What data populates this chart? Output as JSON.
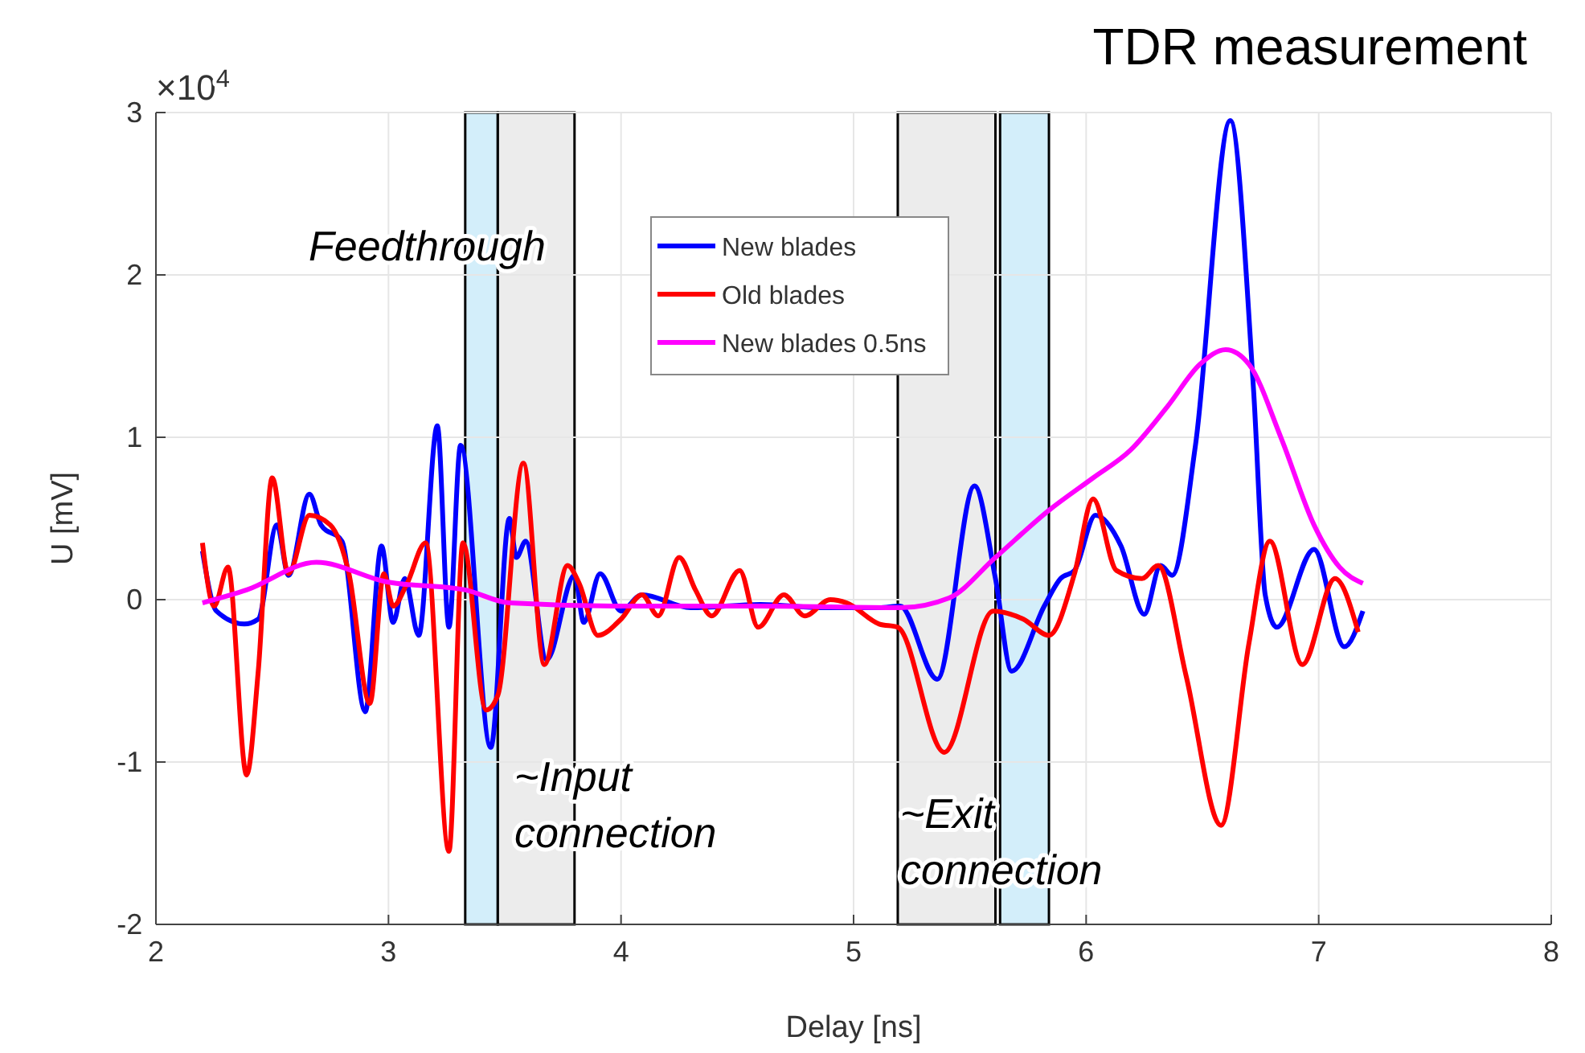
{
  "chart_data": {
    "type": "line",
    "title": "TDR measurement",
    "xlabel": "Delay [ns]",
    "ylabel": "U [mV]",
    "xlim": [
      2,
      8
    ],
    "xticks": [
      2,
      3,
      4,
      5,
      6,
      7,
      8
    ],
    "ylim": [
      -2,
      3
    ],
    "yticks": [
      -2,
      -1,
      0,
      1,
      2,
      3
    ],
    "grid": true,
    "legend": "top",
    "annotations": [
      "×10$^{4}$",
      "Feedthrough",
      "~Input connection",
      "~Exit connection"
    ],
    "bands": [
      {
        "axis": "x",
        "from": 3.33,
        "to": 3.47,
        "color": "#aee0f5"
      },
      {
        "axis": "x",
        "from": 3.47,
        "to": 3.8,
        "color": "#dcdcdc"
      },
      {
        "axis": "x",
        "from": 5.19,
        "to": 5.61,
        "color": "#dcdcdc"
      },
      {
        "axis": "x",
        "from": 5.63,
        "to": 5.84,
        "color": "#aee0f5"
      }
    ],
    "series": [
      {
        "name": "New blades",
        "color": "#0000ff",
        "x": [
          2.2,
          2.26,
          2.38,
          2.44,
          2.52,
          2.57,
          2.66,
          2.71,
          2.8,
          2.9,
          2.97,
          3.02,
          3.07,
          3.13,
          3.21,
          3.26,
          3.31,
          3.44,
          3.52,
          3.55,
          3.59,
          3.68,
          3.8,
          3.84,
          3.91,
          4.0,
          4.09,
          4.3,
          4.6,
          4.87,
          5.11,
          5.2,
          5.36,
          5.52,
          5.61,
          5.68,
          5.82,
          5.89,
          5.95,
          6.04,
          6.15,
          6.25,
          6.32,
          6.37,
          6.47,
          6.62,
          6.72,
          6.77,
          6.82,
          6.98,
          7.11,
          7.19
        ],
        "values": [
          0.3,
          -0.07,
          -0.15,
          -0.12,
          0.46,
          0.15,
          0.65,
          0.46,
          0.36,
          -0.69,
          0.33,
          -0.14,
          0.13,
          -0.22,
          1.07,
          -0.17,
          0.95,
          -0.91,
          0.5,
          0.26,
          0.36,
          -0.37,
          0.15,
          -0.14,
          0.16,
          -0.07,
          0.03,
          -0.05,
          -0.03,
          -0.05,
          -0.05,
          -0.04,
          -0.49,
          0.7,
          0.13,
          -0.44,
          -0.04,
          0.13,
          0.18,
          0.52,
          0.33,
          -0.09,
          0.21,
          0.15,
          0.95,
          2.95,
          1.29,
          0.03,
          -0.17,
          0.31,
          -0.29,
          -0.07
        ]
      },
      {
        "name": "Old blades",
        "color": "#ff0000",
        "x": [
          2.2,
          2.25,
          2.31,
          2.39,
          2.44,
          2.5,
          2.57,
          2.66,
          2.75,
          2.83,
          2.92,
          2.98,
          3.02,
          3.08,
          3.16,
          3.26,
          3.32,
          3.42,
          3.47,
          3.58,
          3.67,
          3.77,
          3.82,
          3.9,
          4.0,
          4.09,
          4.16,
          4.25,
          4.32,
          4.39,
          4.51,
          4.59,
          4.7,
          4.79,
          4.9,
          4.97,
          5.11,
          5.19,
          5.39,
          5.6,
          5.73,
          5.84,
          5.95,
          6.03,
          6.13,
          6.24,
          6.31,
          6.43,
          6.58,
          6.7,
          6.79,
          6.93,
          7.07,
          7.17
        ],
        "values": [
          0.35,
          -0.04,
          0.2,
          -1.08,
          -0.44,
          0.75,
          0.16,
          0.52,
          0.46,
          0.16,
          -0.64,
          0.16,
          -0.04,
          0.1,
          0.35,
          -1.55,
          0.35,
          -0.68,
          -0.59,
          0.84,
          -0.4,
          0.21,
          0.1,
          -0.22,
          -0.12,
          0.03,
          -0.1,
          0.26,
          0.06,
          -0.1,
          0.18,
          -0.17,
          0.03,
          -0.1,
          0.0,
          -0.02,
          -0.15,
          -0.17,
          -0.94,
          -0.07,
          -0.12,
          -0.22,
          0.16,
          0.62,
          0.18,
          0.13,
          0.21,
          -0.47,
          -1.39,
          -0.27,
          0.36,
          -0.4,
          0.13,
          -0.2
        ]
      },
      {
        "name": "New blades 0.5ns",
        "color": "#ff00ff",
        "x": [
          2.2,
          2.39,
          2.69,
          2.99,
          3.33,
          3.52,
          4.02,
          4.6,
          5.2,
          5.41,
          5.61,
          5.84,
          6.03,
          6.19,
          6.35,
          6.49,
          6.6,
          6.7,
          6.84,
          6.98,
          7.09,
          7.19
        ],
        "values": [
          -0.02,
          0.06,
          0.23,
          0.11,
          0.06,
          -0.02,
          -0.04,
          -0.04,
          -0.05,
          0.01,
          0.26,
          0.55,
          0.75,
          0.92,
          1.19,
          1.45,
          1.54,
          1.45,
          0.99,
          0.46,
          0.2,
          0.1
        ]
      }
    ]
  }
}
